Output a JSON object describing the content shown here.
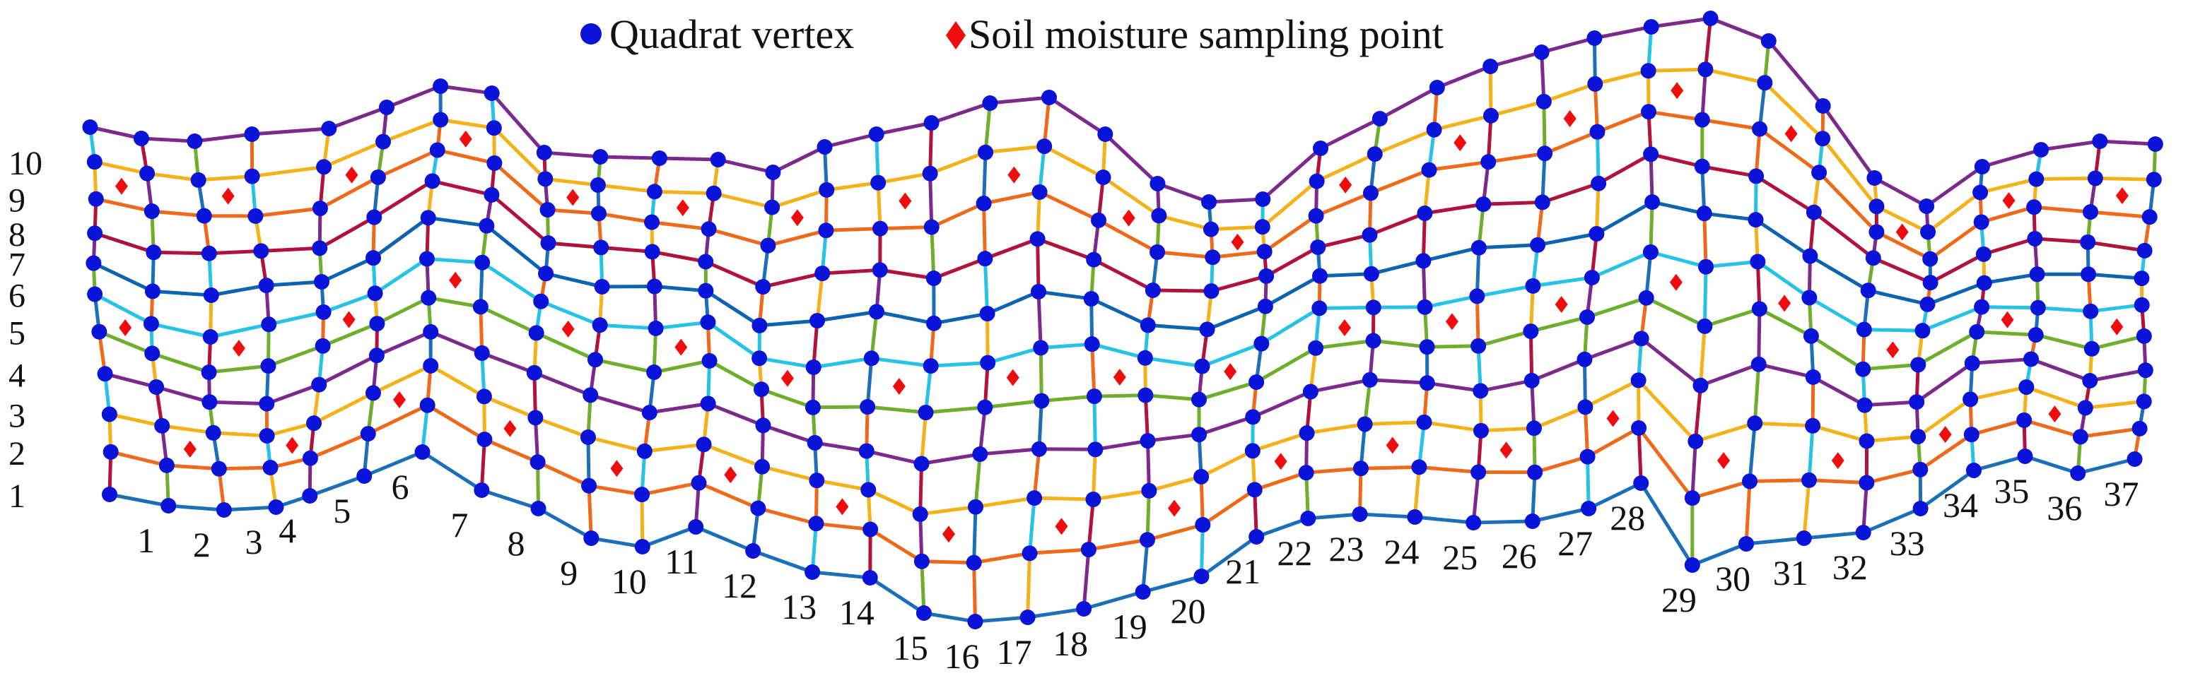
{
  "legend": {
    "vertex_label": "Quadrat vertex",
    "sample_label": "Soil moisture sampling point"
  },
  "colors": {
    "vertex": "#0a14d8",
    "sample": "#ee0d0d",
    "row_lines": [
      "#1b6fb8",
      "#ee6a1a",
      "#f4b21a",
      "#7b2a8c",
      "#6fae2c",
      "#27c3e6",
      "#0c63b0",
      "#b0123b",
      "#ee6a1a",
      "#f4b21a",
      "#7b2a8c"
    ],
    "verticals": [
      "#b0123b",
      "#1b6fb8",
      "#f4b21a",
      "#6fae2c",
      "#27c3e6",
      "#7b2a8c",
      "#ee6a1a"
    ]
  },
  "row_labels": [
    "1",
    "2",
    "3",
    "4",
    "5",
    "6",
    "7",
    "8",
    "9",
    "10"
  ],
  "column_labels": [
    "1",
    "2",
    "3",
    "4",
    "5",
    "6",
    "7",
    "8",
    "9",
    "10",
    "11",
    "12",
    "13",
    "14",
    "15",
    "16",
    "17",
    "18",
    "19",
    "20",
    "21",
    "22",
    "23",
    "24",
    "25",
    "26",
    "27",
    "28",
    "29",
    "30",
    "31",
    "32",
    "33",
    "34",
    "35",
    "36",
    "37"
  ]
}
